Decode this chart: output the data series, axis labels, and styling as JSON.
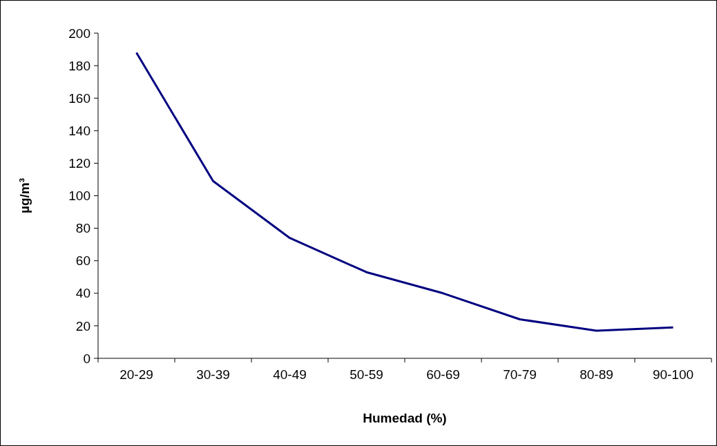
{
  "chart_data": {
    "type": "line",
    "xlabel": "Humedad (%)",
    "ylabel": "µg/m³",
    "categories": [
      "20-29",
      "30-39",
      "40-49",
      "50-59",
      "60-69",
      "70-79",
      "80-89",
      "90-100"
    ],
    "series": [
      {
        "color": "#000080",
        "values": [
          188,
          109,
          74,
          53,
          40,
          24,
          17,
          19
        ]
      }
    ],
    "ylim": [
      0,
      200
    ],
    "yticks": [
      0,
      20,
      40,
      60,
      80,
      100,
      120,
      140,
      160,
      180,
      200
    ],
    "grid": false,
    "marker": "none",
    "line_style": "solid"
  }
}
